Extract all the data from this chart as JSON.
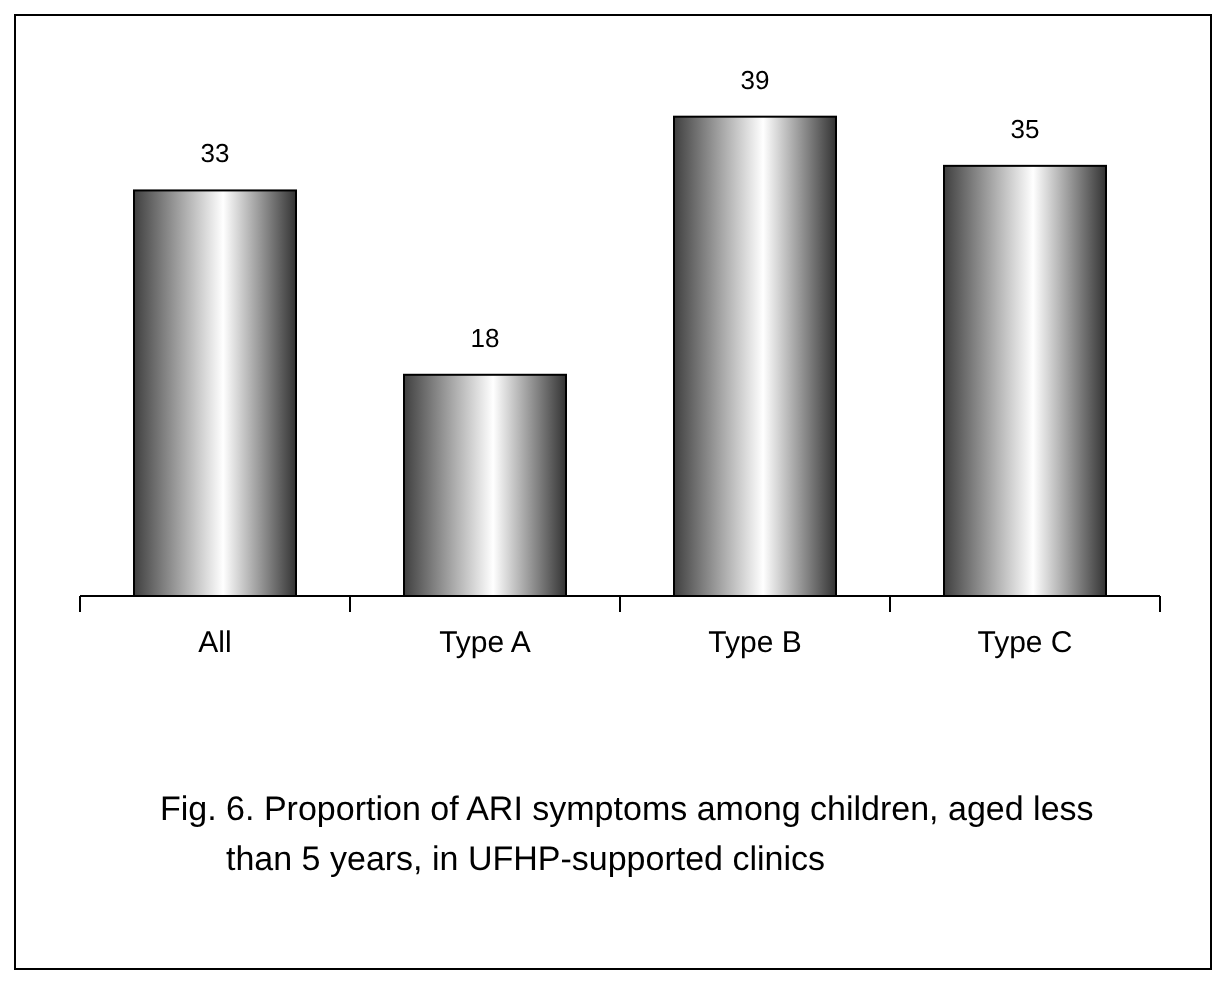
{
  "chart_data": {
    "type": "bar",
    "title": "Fig. 6. Proportion of ARI symptoms among children, aged less than 5 years, in UFHP-supported clinics",
    "categories": [
      "All",
      "Type A",
      "Type B",
      "Type C"
    ],
    "values": [
      33,
      18,
      39,
      35
    ],
    "color": "#000000",
    "data_labels": true
  }
}
